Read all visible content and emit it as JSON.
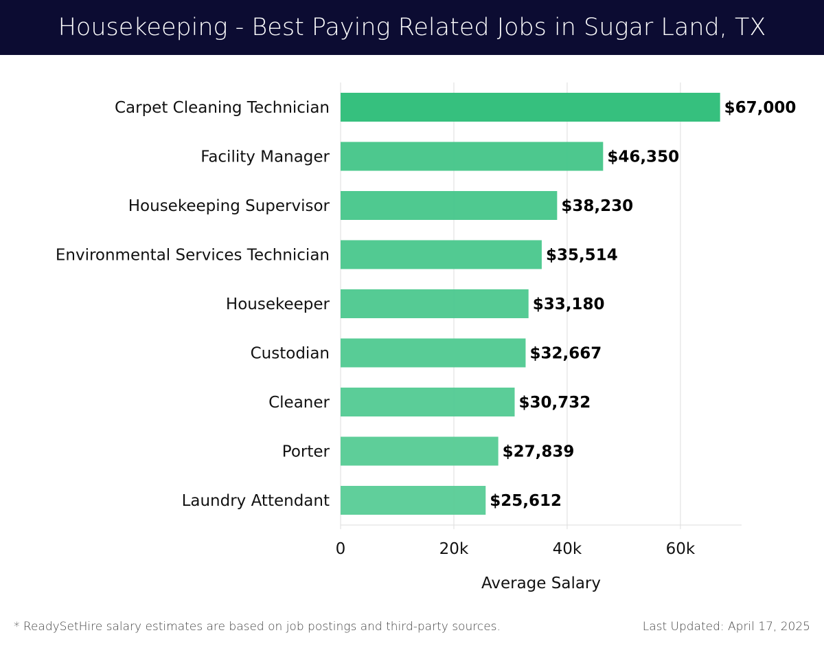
{
  "chart_data": {
    "type": "bar",
    "orientation": "horizontal",
    "title": "Housekeeping - Best Paying Related Jobs in Sugar Land, TX",
    "categories": [
      "Carpet Cleaning Technician",
      "Facility Manager",
      "Housekeeping Supervisor",
      "Environmental Services Technician",
      "Housekeeper",
      "Custodian",
      "Cleaner",
      "Porter",
      "Laundry Attendant"
    ],
    "values": [
      67000,
      46350,
      38230,
      35514,
      33180,
      32667,
      30732,
      27839,
      25612
    ],
    "value_labels": [
      "$67,000",
      "$46,350",
      "$38,230",
      "$35,514",
      "$33,180",
      "$32,667",
      "$30,732",
      "$27,839",
      "$25,612"
    ],
    "bar_colors": [
      "#2bbd77",
      "#43c588",
      "#46c68a",
      "#49c78c",
      "#4cc88e",
      "#4fc990",
      "#52ca92",
      "#55cb94",
      "#57cc96"
    ],
    "xlabel": "Average Salary",
    "ylabel": "",
    "xlim": [
      0,
      70800
    ],
    "xticks": [
      0,
      20000,
      40000,
      60000
    ],
    "xtick_labels": [
      "0",
      "20k",
      "40k",
      "60k"
    ],
    "grid": true
  },
  "footer": {
    "note": "* ReadySetHire salary estimates are based on job postings and third-party sources.",
    "updated": "Last Updated: April 17, 2025"
  }
}
